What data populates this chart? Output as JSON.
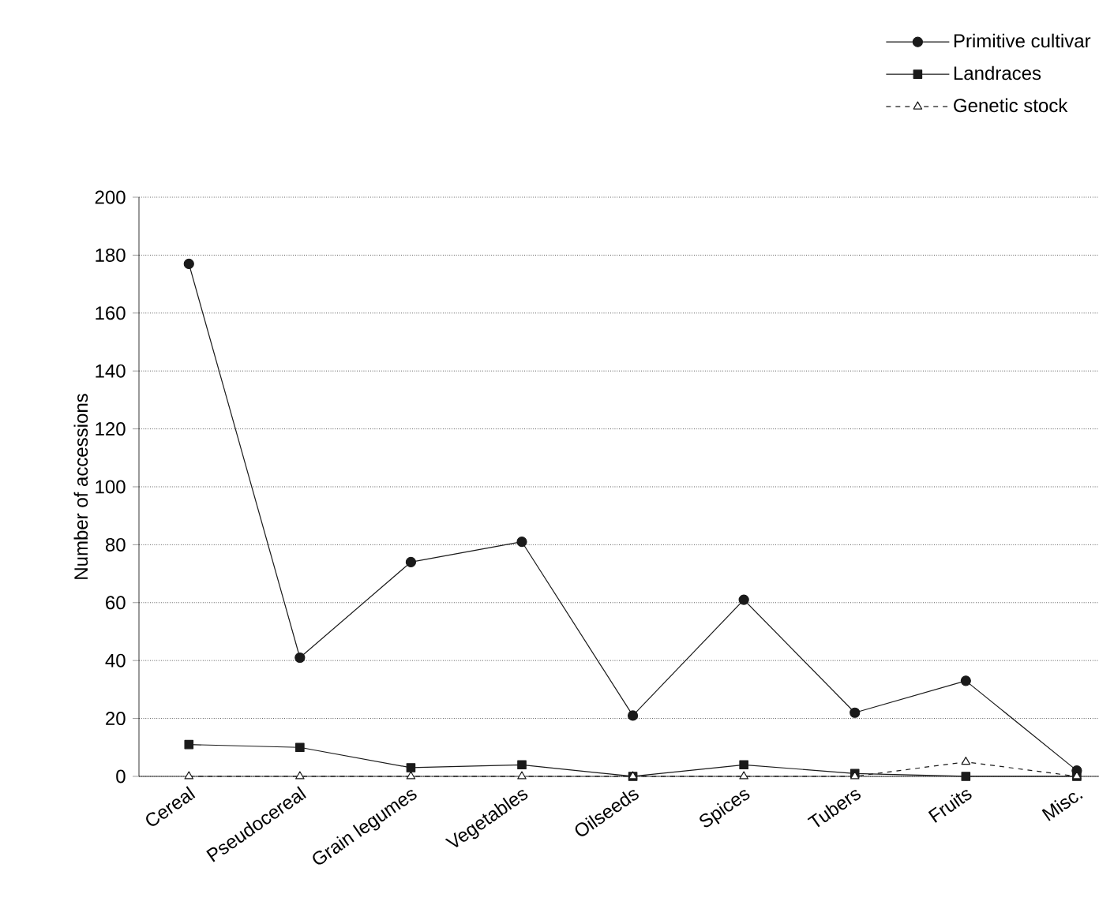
{
  "chart_data": {
    "type": "line",
    "ylabel": "Number of accessions",
    "categories": [
      "Cereal",
      "Pseudocereal",
      "Grain legumes",
      "Vegetables",
      "Oilseeds",
      "Spices",
      "Tubers",
      "Fruits",
      "Misc."
    ],
    "series": [
      {
        "name": "Primitive cultivar",
        "color": "#1a1a1a",
        "marker": "circle",
        "line_style": "solid",
        "values": [
          177,
          41,
          74,
          81,
          21,
          61,
          22,
          33,
          2
        ]
      },
      {
        "name": "Landraces",
        "color": "#1a1a1a",
        "marker": "square",
        "line_style": "solid",
        "values": [
          11,
          10,
          3,
          4,
          0,
          4,
          1,
          0,
          0
        ]
      },
      {
        "name": "Genetic stock",
        "color": "#1a1a1a",
        "marker": "triangle",
        "line_style": "dashed",
        "values": [
          0,
          0,
          0,
          0,
          0,
          0,
          0,
          5,
          0
        ]
      }
    ],
    "ylim": [
      0,
      200
    ],
    "yticks": [
      0,
      20,
      40,
      60,
      80,
      100,
      120,
      140,
      160,
      180,
      200
    ],
    "grid": "y",
    "legend": "top right"
  }
}
